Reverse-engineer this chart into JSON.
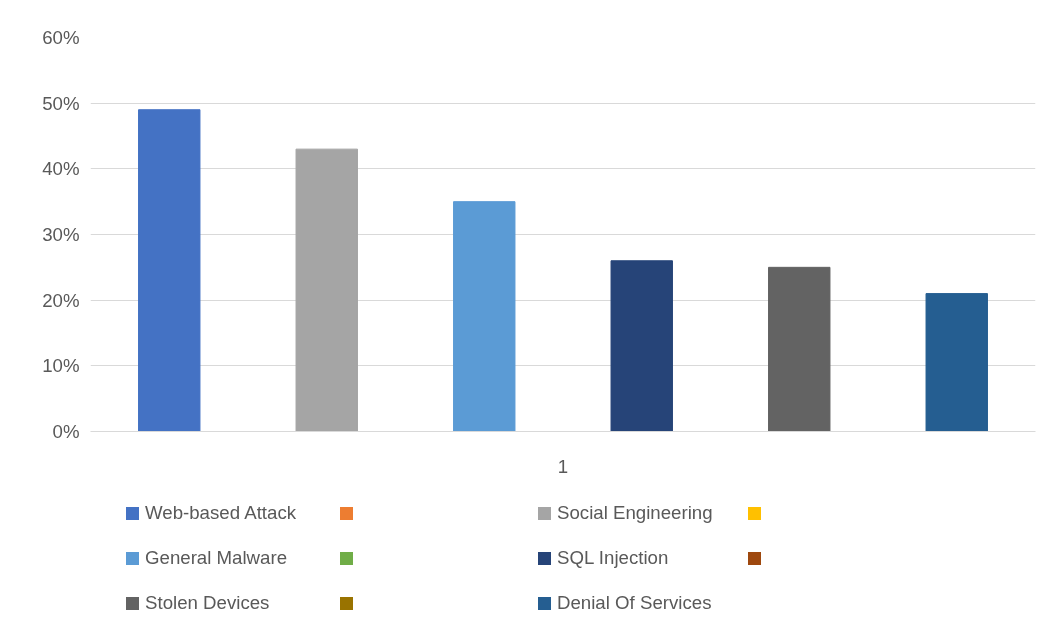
{
  "chart_data": {
    "type": "bar",
    "categories": [
      "1"
    ],
    "series": [
      {
        "name": "Web-based Attack",
        "color": "#4472c4",
        "values": [
          49
        ]
      },
      {
        "color": "#ed7d31",
        "values": [
          null
        ]
      },
      {
        "name": "Social Engineering",
        "color": "#a5a5a5",
        "values": [
          43
        ]
      },
      {
        "color": "#ffc000",
        "values": [
          null
        ]
      },
      {
        "name": "General Malware",
        "color": "#5b9bd5",
        "values": [
          35
        ]
      },
      {
        "color": "#70ad47",
        "values": [
          null
        ]
      },
      {
        "name": "SQL Injection",
        "color": "#264478",
        "values": [
          26
        ]
      },
      {
        "color": "#9e480e",
        "values": [
          null
        ]
      },
      {
        "name": "Stolen Devices",
        "color": "#636363",
        "values": [
          25
        ]
      },
      {
        "color": "#997300",
        "values": [
          null
        ]
      },
      {
        "name": "Denial Of Services",
        "color": "#255e91",
        "values": [
          21
        ]
      }
    ],
    "ylim": [
      0,
      60
    ],
    "yticks": [
      {
        "value": 0,
        "label": "0%"
      },
      {
        "value": 10,
        "label": "10%"
      },
      {
        "value": 20,
        "label": "20%"
      },
      {
        "value": 30,
        "label": "30%"
      },
      {
        "value": 40,
        "label": "40%"
      },
      {
        "value": 50,
        "label": "50%"
      },
      {
        "value": 60,
        "label": "60%"
      }
    ],
    "grid": "y",
    "legend": "bottom"
  }
}
